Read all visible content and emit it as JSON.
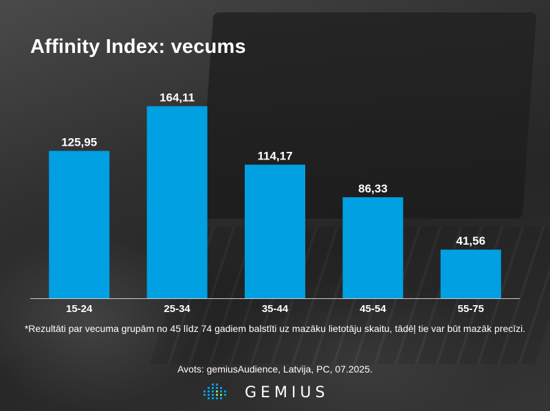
{
  "title": "Affinity Index: vecums",
  "chart_data": {
    "type": "bar",
    "title": "Affinity Index: vecums",
    "categories": [
      "15-24",
      "25-34",
      "35-44",
      "45-54",
      "55-75"
    ],
    "values": [
      125.95,
      164.11,
      114.17,
      86.33,
      41.56
    ],
    "value_labels": [
      "125,95",
      "164,11",
      "114,17",
      "86,33",
      "41,56"
    ],
    "ylim": [
      0,
      175
    ],
    "xlabel": "",
    "ylabel": "",
    "grid": false,
    "bar_color": "#00a0e3"
  },
  "footnote": "*Rezultāti par vecuma grupām no 45 līdz 74 gadiem balstīti uz mazāku lietotāju skaitu, tādēļ tie var būt mazāk precīzi.",
  "source": "Avots: gemiusAudience, Latvija, PC, 07.2025.",
  "logo": {
    "text": "GEMIUS",
    "icon": "gemius-dots-icon",
    "accent_color": "#00a0e3"
  }
}
